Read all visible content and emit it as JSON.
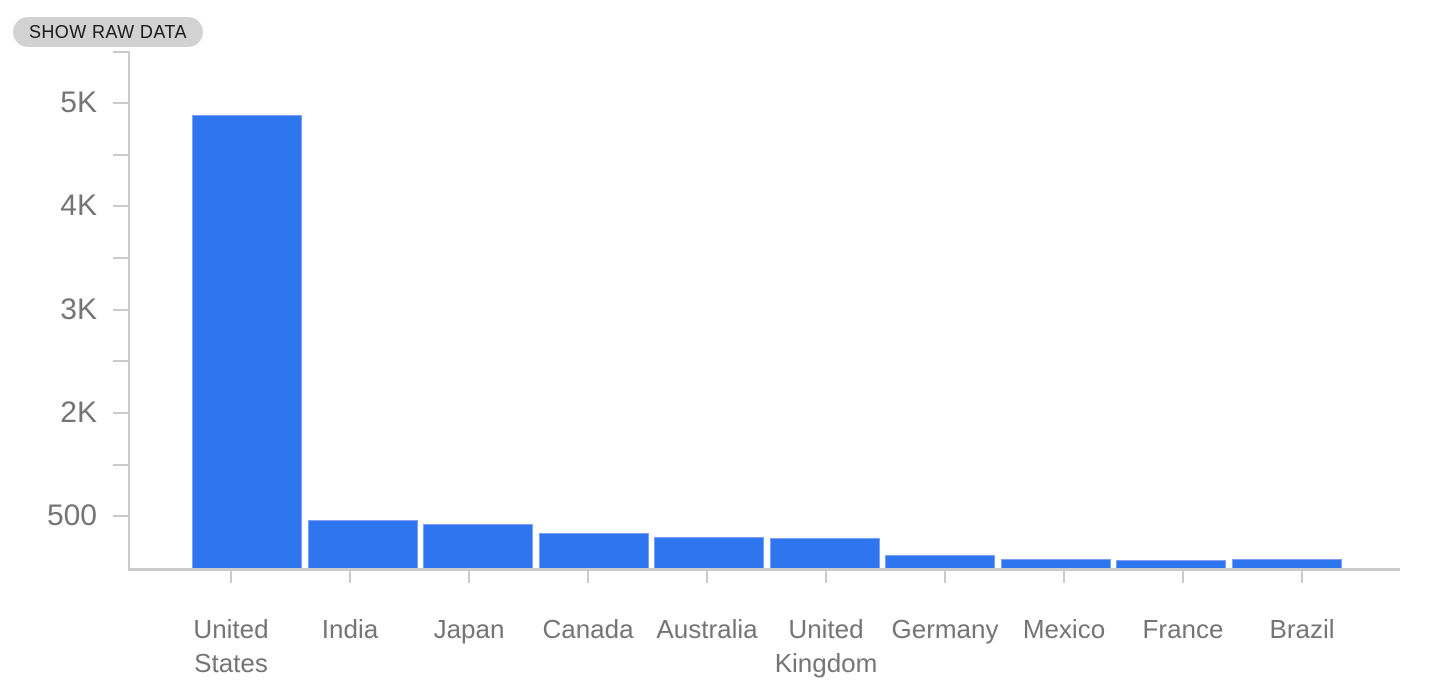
{
  "button": {
    "label": "SHOW RAW DATA"
  },
  "chart_data": {
    "type": "bar",
    "title": "",
    "xlabel": "",
    "ylabel": "",
    "grid": "off",
    "legend": "none",
    "categories": [
      "United States",
      "India",
      "Japan",
      "Canada",
      "Australia",
      "United Kingdom",
      "Germany",
      "Mexico",
      "France",
      "Brazil"
    ],
    "values": [
      4385,
      465,
      430,
      340,
      300,
      290,
      125,
      90,
      80,
      85
    ],
    "ylim": [
      0,
      5150
    ],
    "y_axis": {
      "labeled_ticks": [
        {
          "value": 4500,
          "label": "5K"
        },
        {
          "value": 3500,
          "label": "4K"
        },
        {
          "value": 2500,
          "label": "3K"
        },
        {
          "value": 1500,
          "label": "2K"
        },
        {
          "value": 500,
          "label": "500"
        }
      ],
      "minor_ticks": [
        5000,
        4000,
        3000,
        2000,
        1000
      ]
    },
    "colors": {
      "bar": "#2d76f0",
      "bar_edge": "#7f9ff2",
      "axis": "#cbcbcb",
      "tick_label": "#757575"
    }
  }
}
